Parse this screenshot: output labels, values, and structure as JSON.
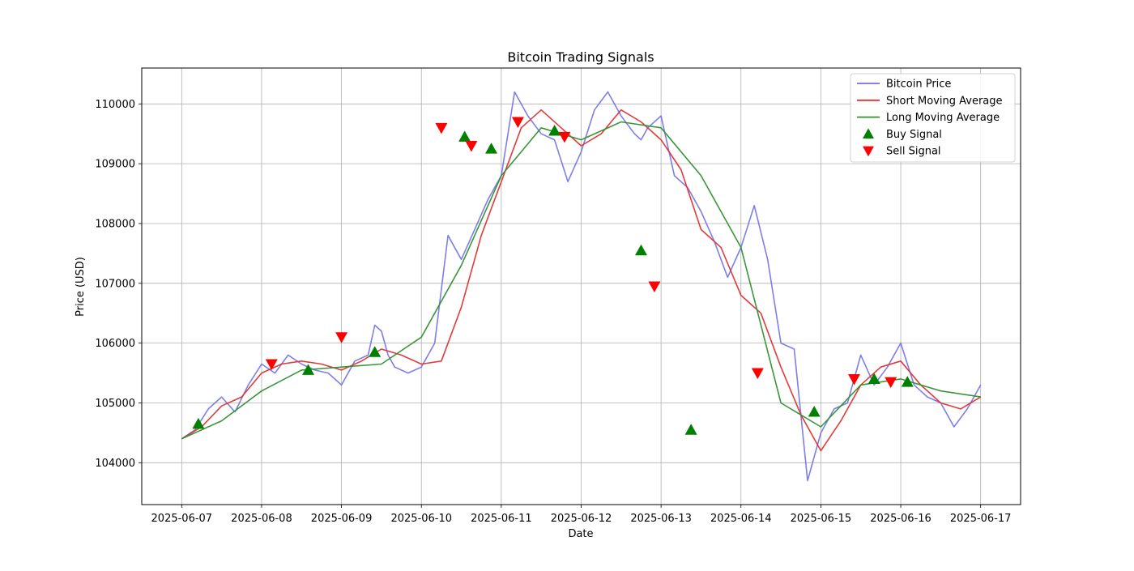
{
  "chart_data": {
    "type": "line",
    "title": "Bitcoin Trading Signals",
    "xlabel": "Date",
    "ylabel": "Price (USD)",
    "x_start": "2025-06-07",
    "x_end": "2025-06-17",
    "xlim": [
      "2025-06-06T12:00",
      "2025-06-17T12:00"
    ],
    "ylim": [
      103300,
      110600
    ],
    "x_ticks": [
      "2025-06-07",
      "2025-06-08",
      "2025-06-09",
      "2025-06-10",
      "2025-06-11",
      "2025-06-12",
      "2025-06-13",
      "2025-06-14",
      "2025-06-15",
      "2025-06-16",
      "2025-06-17"
    ],
    "y_ticks": [
      104000,
      105000,
      106000,
      107000,
      108000,
      109000,
      110000
    ],
    "y_tick_labels": [
      "104000",
      "105000",
      "106000",
      "107000",
      "108000",
      "109000",
      "110000"
    ],
    "grid": true,
    "legend_position": "top-right",
    "legend": [
      "Bitcoin Price",
      "Short Moving Average",
      "Long Moving Average",
      "Buy Signal",
      "Sell Signal"
    ],
    "colors": {
      "price": "#7070e8",
      "short_ma": "#e03030",
      "long_ma": "#309030",
      "buy": "#008000",
      "sell": "#ff0000"
    },
    "series": [
      {
        "name": "Bitcoin Price",
        "x": [
          "2025-06-07T00:00",
          "2025-06-07T04:00",
          "2025-06-07T08:00",
          "2025-06-07T12:00",
          "2025-06-07T16:00",
          "2025-06-07T20:00",
          "2025-06-08T00:00",
          "2025-06-08T04:00",
          "2025-06-08T08:00",
          "2025-06-08T12:00",
          "2025-06-08T16:00",
          "2025-06-08T20:00",
          "2025-06-09T00:00",
          "2025-06-09T04:00",
          "2025-06-09T08:00",
          "2025-06-09T10:00",
          "2025-06-09T12:00",
          "2025-06-09T14:00",
          "2025-06-09T16:00",
          "2025-06-09T20:00",
          "2025-06-10T00:00",
          "2025-06-10T04:00",
          "2025-06-10T08:00",
          "2025-06-10T12:00",
          "2025-06-10T16:00",
          "2025-06-10T20:00",
          "2025-06-11T00:00",
          "2025-06-11T04:00",
          "2025-06-11T08:00",
          "2025-06-11T12:00",
          "2025-06-11T16:00",
          "2025-06-11T20:00",
          "2025-06-12T00:00",
          "2025-06-12T04:00",
          "2025-06-12T08:00",
          "2025-06-12T12:00",
          "2025-06-12T16:00",
          "2025-06-12T18:00",
          "2025-06-12T20:00",
          "2025-06-13T00:00",
          "2025-06-13T04:00",
          "2025-06-13T08:00",
          "2025-06-13T12:00",
          "2025-06-13T16:00",
          "2025-06-13T20:00",
          "2025-06-14T00:00",
          "2025-06-14T04:00",
          "2025-06-14T08:00",
          "2025-06-14T12:00",
          "2025-06-14T16:00",
          "2025-06-14T20:00",
          "2025-06-15T00:00",
          "2025-06-15T04:00",
          "2025-06-15T08:00",
          "2025-06-15T12:00",
          "2025-06-15T16:00",
          "2025-06-15T20:00",
          "2025-06-16T00:00",
          "2025-06-16T04:00",
          "2025-06-16T08:00",
          "2025-06-16T12:00",
          "2025-06-16T16:00",
          "2025-06-16T20:00",
          "2025-06-17T00:00"
        ],
        "values": [
          104400,
          104550,
          104900,
          105100,
          104850,
          105300,
          105650,
          105500,
          105800,
          105650,
          105550,
          105500,
          105300,
          105700,
          105800,
          106300,
          106200,
          105800,
          105600,
          105500,
          105600,
          106000,
          107800,
          107400,
          107900,
          108400,
          108800,
          110200,
          109800,
          109500,
          109400,
          108700,
          109200,
          109900,
          110200,
          109800,
          109500,
          109400,
          109600,
          109800,
          108800,
          108600,
          108200,
          107700,
          107100,
          107600,
          108300,
          107400,
          106000,
          105900,
          103700,
          104500,
          104900,
          105000,
          105800,
          105300,
          105600,
          106000,
          105300,
          105100,
          105000,
          104600,
          104900,
          105300
        ]
      },
      {
        "name": "Short Moving Average",
        "x": [
          "2025-06-07T00:00",
          "2025-06-07T06:00",
          "2025-06-07T12:00",
          "2025-06-07T18:00",
          "2025-06-08T00:00",
          "2025-06-08T06:00",
          "2025-06-08T12:00",
          "2025-06-08T18:00",
          "2025-06-09T00:00",
          "2025-06-09T06:00",
          "2025-06-09T12:00",
          "2025-06-09T18:00",
          "2025-06-10T00:00",
          "2025-06-10T06:00",
          "2025-06-10T12:00",
          "2025-06-10T18:00",
          "2025-06-11T00:00",
          "2025-06-11T06:00",
          "2025-06-11T12:00",
          "2025-06-11T18:00",
          "2025-06-12T00:00",
          "2025-06-12T06:00",
          "2025-06-12T12:00",
          "2025-06-12T18:00",
          "2025-06-13T00:00",
          "2025-06-13T06:00",
          "2025-06-13T12:00",
          "2025-06-13T18:00",
          "2025-06-14T00:00",
          "2025-06-14T06:00",
          "2025-06-14T12:00",
          "2025-06-14T18:00",
          "2025-06-15T00:00",
          "2025-06-15T06:00",
          "2025-06-15T12:00",
          "2025-06-15T18:00",
          "2025-06-16T00:00",
          "2025-06-16T06:00",
          "2025-06-16T12:00",
          "2025-06-16T18:00",
          "2025-06-17T00:00"
        ],
        "values": [
          104400,
          104600,
          104950,
          105100,
          105500,
          105650,
          105700,
          105650,
          105550,
          105700,
          105900,
          105800,
          105650,
          105700,
          106600,
          107800,
          108700,
          109600,
          109900,
          109600,
          109300,
          109500,
          109900,
          109700,
          109400,
          108900,
          107900,
          107600,
          106800,
          106500,
          105600,
          104800,
          104200,
          104700,
          105300,
          105600,
          105700,
          105300,
          105000,
          104900,
          105100
        ]
      },
      {
        "name": "Long Moving Average",
        "x": [
          "2025-06-07T00:00",
          "2025-06-07T12:00",
          "2025-06-08T00:00",
          "2025-06-08T12:00",
          "2025-06-09T00:00",
          "2025-06-09T12:00",
          "2025-06-10T00:00",
          "2025-06-10T12:00",
          "2025-06-11T00:00",
          "2025-06-11T12:00",
          "2025-06-12T00:00",
          "2025-06-12T12:00",
          "2025-06-13T00:00",
          "2025-06-13T12:00",
          "2025-06-14T00:00",
          "2025-06-14T12:00",
          "2025-06-15T00:00",
          "2025-06-15T12:00",
          "2025-06-16T00:00",
          "2025-06-16T12:00",
          "2025-06-17T00:00"
        ],
        "values": [
          104400,
          104700,
          105200,
          105550,
          105600,
          105650,
          106100,
          107300,
          108800,
          109600,
          109400,
          109700,
          109600,
          108800,
          107600,
          105000,
          104600,
          105300,
          105400,
          105200,
          105100
        ]
      }
    ],
    "buy_signals": {
      "name": "Buy Signal",
      "x": [
        "2025-06-07T05:00",
        "2025-06-08T14:00",
        "2025-06-09T10:00",
        "2025-06-10T13:00",
        "2025-06-10T21:00",
        "2025-06-11T16:00",
        "2025-06-12T18:00",
        "2025-06-13T09:00",
        "2025-06-14T22:00",
        "2025-06-15T16:00",
        "2025-06-16T02:00"
      ],
      "values": [
        104650,
        105550,
        105850,
        109450,
        109250,
        109550,
        107550,
        104550,
        104850,
        105400,
        105350
      ]
    },
    "sell_signals": {
      "name": "Sell Signal",
      "x": [
        "2025-06-08T03:00",
        "2025-06-09T00:00",
        "2025-06-10T06:00",
        "2025-06-10T15:00",
        "2025-06-11T05:00",
        "2025-06-11T19:00",
        "2025-06-12T22:00",
        "2025-06-14T05:00",
        "2025-06-15T10:00",
        "2025-06-15T21:00"
      ],
      "values": [
        105650,
        106100,
        109600,
        109300,
        109700,
        109450,
        106950,
        105500,
        105400,
        105350
      ]
    }
  }
}
